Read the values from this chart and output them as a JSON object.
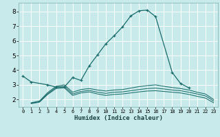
{
  "xlabel": "Humidex (Indice chaleur)",
  "background_color": "#c8eaea",
  "grid_color": "#b0d8d8",
  "line_color": "#1a6b6b",
  "xlim": [
    -0.5,
    23.5
  ],
  "ylim": [
    1.5,
    8.6
  ],
  "xticks": [
    0,
    1,
    2,
    3,
    4,
    5,
    6,
    7,
    8,
    9,
    10,
    11,
    12,
    13,
    14,
    15,
    16,
    17,
    18,
    19,
    20,
    21,
    22,
    23
  ],
  "yticks": [
    2,
    3,
    4,
    5,
    6,
    7,
    8
  ],
  "series": [
    {
      "x": [
        0,
        1,
        3,
        4,
        5,
        6,
        7,
        8,
        9,
        10,
        11,
        12,
        13,
        14,
        15,
        16,
        18,
        19,
        20
      ],
      "y": [
        3.6,
        3.2,
        3.0,
        2.85,
        2.85,
        3.5,
        3.3,
        4.3,
        5.05,
        5.8,
        6.35,
        6.95,
        7.7,
        8.05,
        8.1,
        7.65,
        3.85,
        3.1,
        2.8
      ],
      "marker": true
    },
    {
      "x": [
        1,
        2,
        3,
        4,
        5,
        6,
        7,
        8,
        9,
        10,
        11,
        12,
        13,
        14,
        15,
        16,
        17,
        18,
        19,
        20,
        21,
        22,
        23
      ],
      "y": [
        1.72,
        1.82,
        2.35,
        2.75,
        2.8,
        2.28,
        2.45,
        2.52,
        2.38,
        2.28,
        2.35,
        2.38,
        2.45,
        2.52,
        2.58,
        2.6,
        2.55,
        2.5,
        2.45,
        2.35,
        2.22,
        2.1,
        1.78
      ],
      "marker": false
    },
    {
      "x": [
        1,
        2,
        3,
        4,
        5,
        6,
        7,
        8,
        9,
        10,
        11,
        12,
        13,
        14,
        15,
        16,
        17,
        18,
        19,
        20,
        21,
        22,
        23
      ],
      "y": [
        1.75,
        1.85,
        2.4,
        2.82,
        2.9,
        2.38,
        2.55,
        2.62,
        2.5,
        2.42,
        2.5,
        2.52,
        2.6,
        2.68,
        2.75,
        2.78,
        2.72,
        2.65,
        2.6,
        2.5,
        2.38,
        2.25,
        1.9
      ],
      "marker": false
    },
    {
      "x": [
        1,
        2,
        3,
        4,
        5,
        6,
        7,
        8,
        9,
        10,
        11,
        12,
        13,
        14,
        15,
        16,
        17,
        18,
        19,
        20,
        21,
        22,
        23
      ],
      "y": [
        1.78,
        1.9,
        2.48,
        2.9,
        3.0,
        2.5,
        2.68,
        2.75,
        2.65,
        2.58,
        2.65,
        2.68,
        2.78,
        2.88,
        2.95,
        3.0,
        2.9,
        2.82,
        2.75,
        2.65,
        2.5,
        2.38,
        2.0
      ],
      "marker": false
    }
  ]
}
